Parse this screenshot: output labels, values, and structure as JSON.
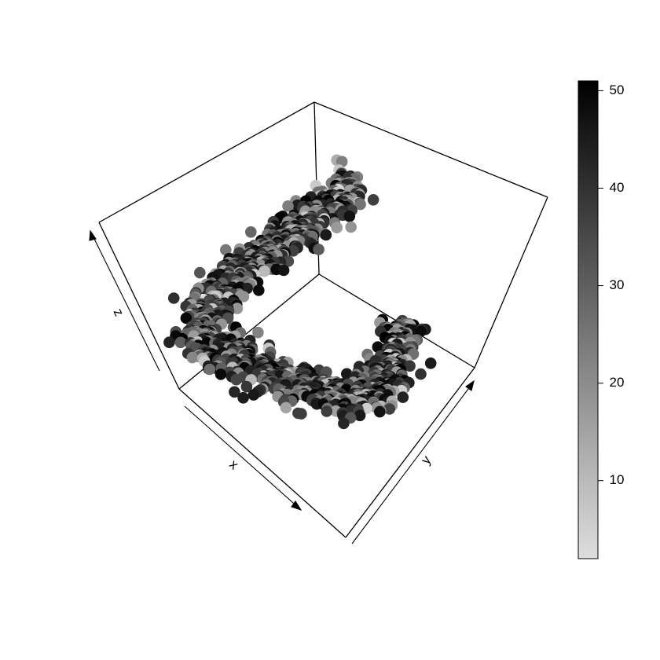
{
  "chart_data": {
    "type": "scatter",
    "projection": "3d-box",
    "title": "",
    "xlabel": "x",
    "ylabel": "y",
    "zlabel": "z",
    "point_style": "filled circles",
    "color_scale": {
      "palette": "grayscale",
      "low_color": "#dedede",
      "high_color": "#000000",
      "range": [
        2,
        51
      ],
      "ticks": [
        "10",
        "20",
        "30",
        "40",
        "50"
      ]
    },
    "description_of_shape": "swiss-roll-like curved band of points",
    "n_points_estimated": 1200
  }
}
